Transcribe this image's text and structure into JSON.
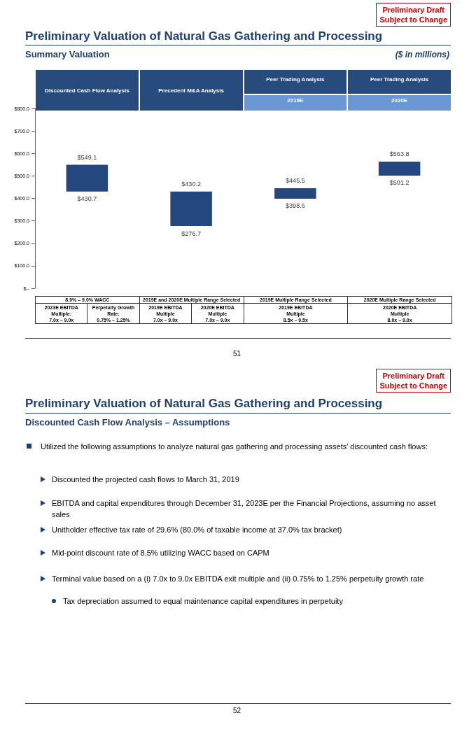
{
  "chart_data": {
    "type": "bar",
    "title": "Preliminary Valuation of Natural Gas Gathering and Processing",
    "subtitle": "Summary Valuation",
    "categories": [
      "Discounted Cash Flow Analysis",
      "Precedent M&A Analysis",
      "Peer Trading Analysis\n2019E",
      "Peer Trading Analysis\n2020E"
    ],
    "base": [
      430.7,
      276.7,
      398.6,
      501.2
    ],
    "values": [
      118.4,
      153.5,
      46.9,
      62.6
    ],
    "color": "#24477f",
    "ylim": [
      0,
      800
    ],
    "yticks": [
      {
        "value": 0,
        "label": "$--"
      },
      {
        "value": 100,
        "label": "$100.0"
      },
      {
        "value": 200,
        "label": "$200.0"
      },
      {
        "value": 300,
        "label": "$300.0"
      },
      {
        "value": 400,
        "label": "$400.0"
      },
      {
        "value": 500,
        "label": "$500.0"
      },
      {
        "value": 600,
        "label": "$600.0"
      },
      {
        "value": 700,
        "label": "$700.0"
      },
      {
        "value": 800,
        "label": "$800.0"
      }
    ],
    "grid": false,
    "annotations": [
      "Preliminary Draft\nSubject to Change",
      "($ in millions)",
      "8.0% – 9.0% WACC",
      "2019E and 2020E Multiple Range Selected",
      "2019E Multiple Range Selected",
      "2020E Multiple Range Selected",
      "2023E EBITDA\nMultiple:\n7.0x – 9.0x",
      "Perpetuity Growth\nRate:\n0.75% – 1.25%",
      "2019E EBITDA\nMultiple\n7.0x – 9.0x",
      "2020E EBITDA\nMultiple\n7.0x – 9.0x",
      "2019E EBITDA\nMultiple\n8.5x – 9.5x",
      "2020E EBITDA\nMultiple\n8.0x – 9.0x",
      "51",
      "Preliminary Draft\nSubject to Change",
      "Preliminary Valuation of Natural Gas Gathering and Processing",
      "Discounted Cash Flow Analysis – Assumptions",
      "Utilized the following assumptions to analyze natural gas gathering and processing assets’ discounted cash flows:",
      "Discounted the projected cash flows to March 31, 2019",
      "EBITDA and capital expenditures through December 31, 2023E per the Financial Projections, assuming no asset sales",
      "Unitholder effective tax rate of 29.6% (80.0% of taxable income at 37.0% tax bracket)",
      "Mid-point discount rate of 8.5% utilizing WACC based on CAPM",
      "Terminal value based on a (i) 7.0x to 9.0x EBITDA exit multiple and (ii) 0.75% to 1.25% perpetuity growth rate",
      "Tax depreciation assumed to equal maintenance capital expenditures in perpetuity",
      "52",
      {
        "text": "$549.1",
        "x": "Discounted Cash Flow Analysis",
        "y": 549.1
      },
      {
        "text": "$430.7",
        "x": "Discounted Cash Flow Analysis",
        "y": 430.7
      },
      {
        "text": "$430.2",
        "x": "Precedent M&A Analysis",
        "y": 430.2
      },
      {
        "text": "$276.7",
        "x": "Precedent M&A Analysis",
        "y": 276.7
      },
      {
        "text": "$445.5",
        "x": "Peer Trading Analysis\n2019E",
        "y": 445.5
      },
      {
        "text": "$398.6",
        "x": "Peer Trading Analysis\n2019E",
        "y": 398.6
      },
      {
        "text": "$563.8",
        "x": "Peer Trading Analysis\n2020E",
        "y": 563.8
      },
      {
        "text": "$501.2",
        "x": "Peer Trading Analysis\n2020E",
        "y": 501.2
      }
    ]
  }
}
